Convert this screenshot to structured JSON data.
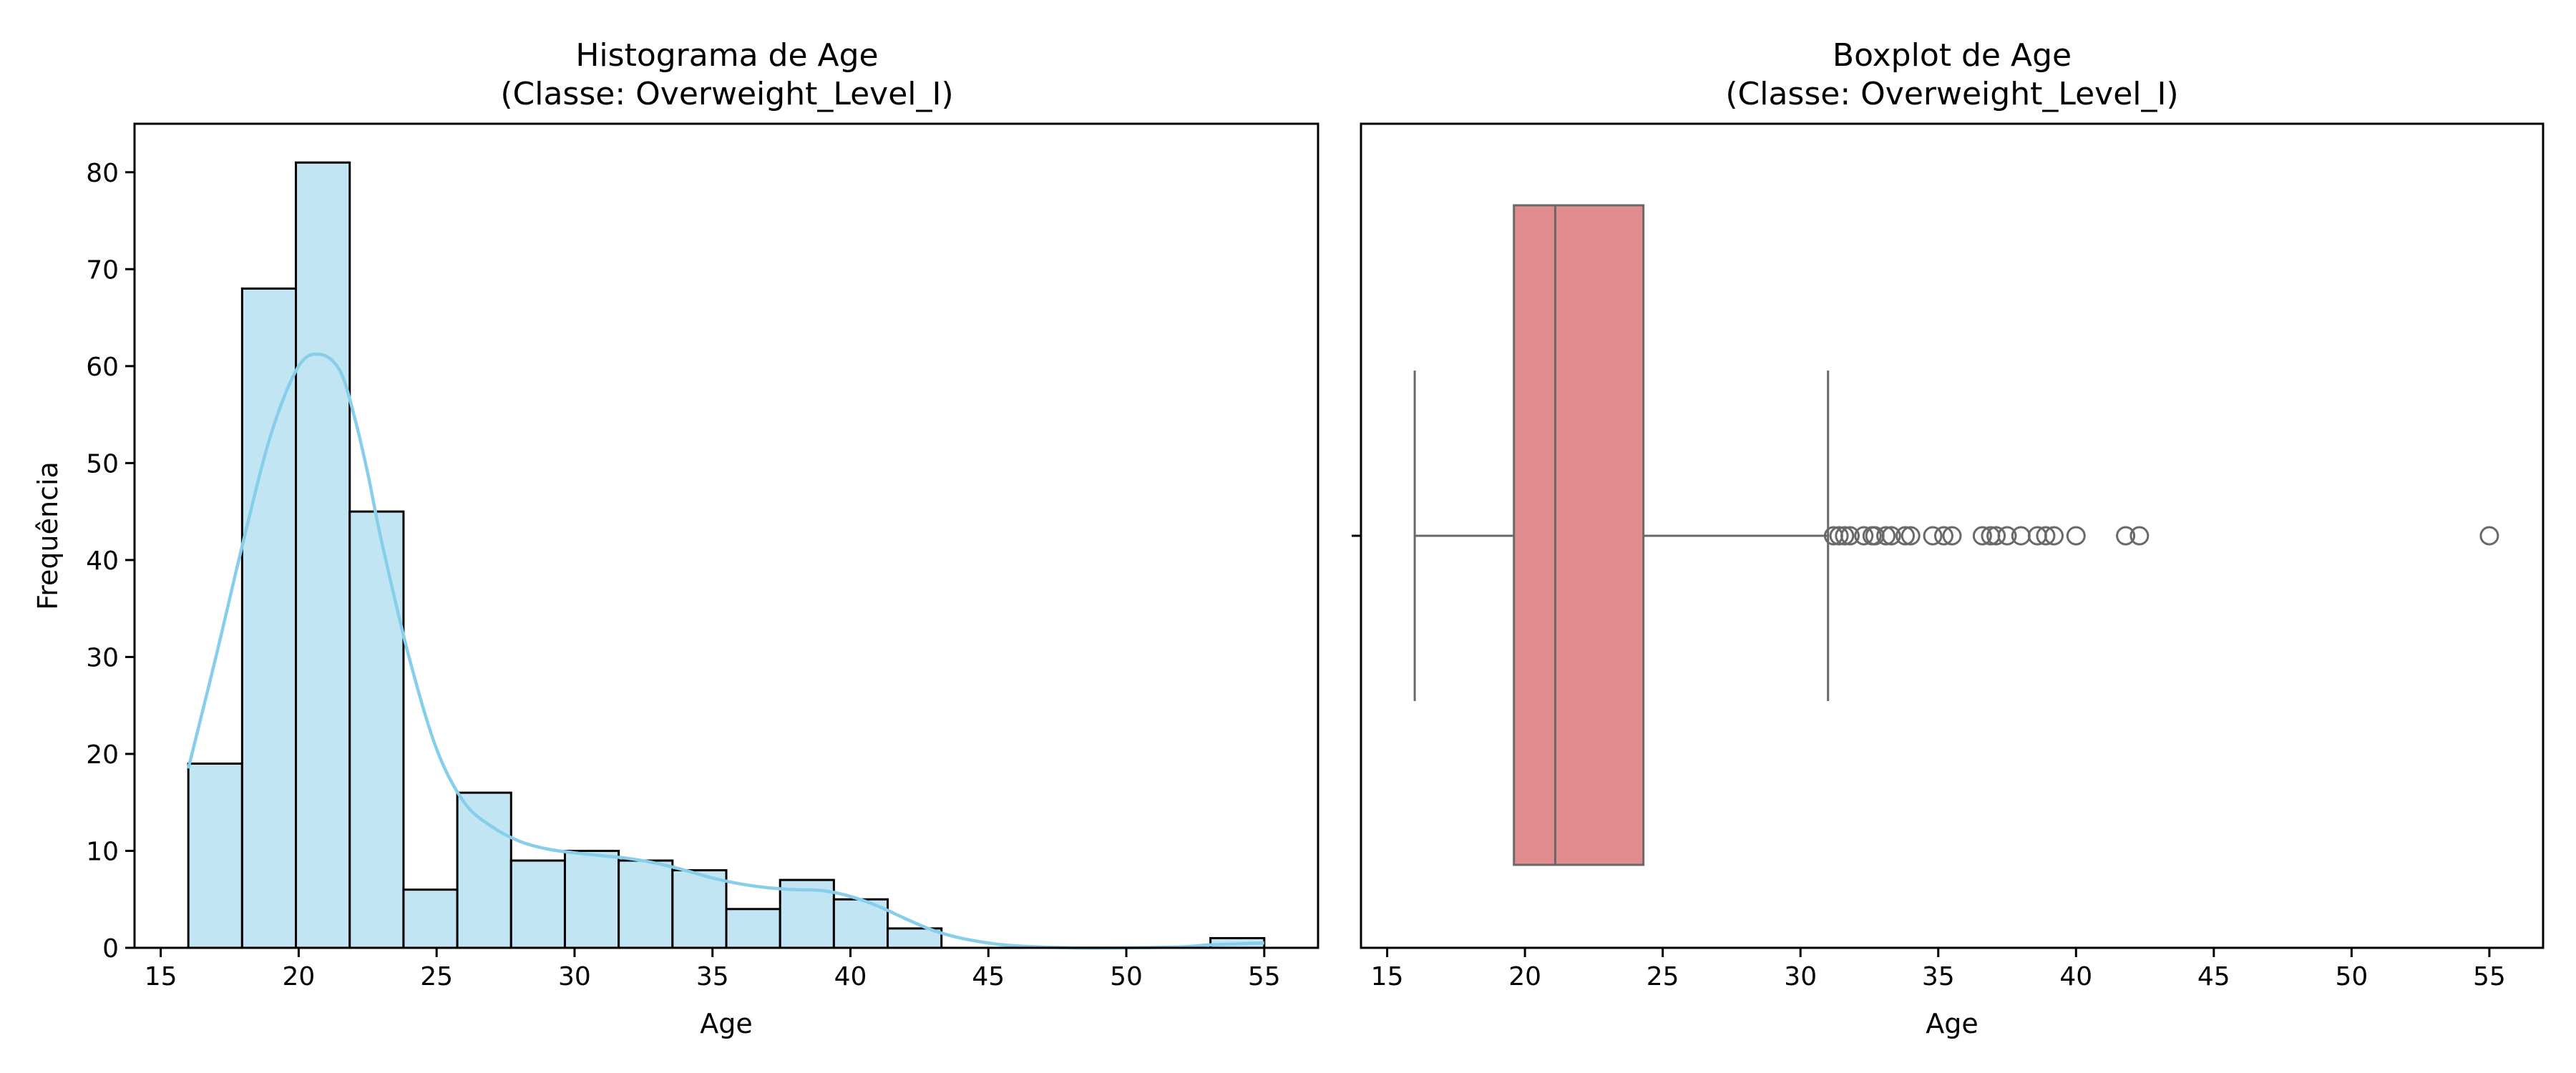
{
  "chart_data": [
    {
      "type": "histogram",
      "title": "Histograma de Age\n(Classe: Overweight_Level_I)",
      "xlabel": "Age",
      "ylabel": "Frequência",
      "xlim": [
        14.05,
        56.95
      ],
      "ylim": [
        0,
        85
      ],
      "xticks": [
        15,
        20,
        25,
        30,
        35,
        40,
        45,
        50,
        55
      ],
      "yticks": [
        0,
        10,
        20,
        30,
        40,
        50,
        60,
        70,
        80
      ],
      "bin_edges": [
        16,
        17.95,
        19.9,
        21.85,
        23.8,
        25.75,
        27.7,
        29.65,
        31.6,
        33.55,
        35.5,
        37.45,
        39.4,
        41.35,
        43.3,
        45.25,
        47.2,
        49.15,
        51.1,
        53.05,
        55
      ],
      "values": [
        19,
        68,
        81,
        45,
        6,
        16,
        9,
        10,
        9,
        8,
        4,
        7,
        5,
        2,
        0,
        0,
        0,
        0,
        0,
        1
      ],
      "kde": {
        "x": [
          16,
          17,
          18,
          19,
          20,
          20.8,
          21.5,
          22,
          22.5,
          23,
          24,
          25,
          26,
          27,
          28,
          29,
          30,
          31,
          32,
          33,
          34,
          35,
          36,
          37,
          38,
          39,
          40,
          41,
          42,
          43,
          44,
          45,
          46,
          48,
          50,
          52,
          53,
          54,
          55
        ],
        "y": [
          18.5,
          30,
          42,
          53,
          60,
          61.2,
          59.5,
          55,
          49,
          42,
          30,
          20.5,
          15,
          12.5,
          11,
          10.2,
          9.8,
          9.5,
          9.2,
          8.7,
          8,
          7.2,
          6.6,
          6.2,
          6,
          5.9,
          5.3,
          4.3,
          3,
          1.8,
          1,
          0.5,
          0.2,
          0,
          0,
          0.1,
          0.3,
          0.4,
          0.5
        ]
      },
      "bar_color": "#c2e5f4",
      "edge_color": "#000000",
      "kde_color": "#87ceeb"
    },
    {
      "type": "boxplot",
      "title": "Boxplot de Age\n(Classe: Overweight_Level_I)",
      "xlabel": "Age",
      "xlim": [
        14.05,
        56.95
      ],
      "xticks": [
        15,
        20,
        25,
        30,
        35,
        40,
        45,
        50,
        55
      ],
      "box": {
        "whisker_low": 16,
        "q1": 19.6,
        "median": 21.1,
        "q3": 24.3,
        "whisker_high": 31.0
      },
      "outliers": [
        31.2,
        31.4,
        31.6,
        31.8,
        32.3,
        32.6,
        32.7,
        33.1,
        33.3,
        33.8,
        34.0,
        34.8,
        35.2,
        35.5,
        36.6,
        36.9,
        37.1,
        37.5,
        38.0,
        38.6,
        38.9,
        39.2,
        40.0,
        41.8,
        42.3,
        55.0
      ],
      "box_color": "#e08b8e",
      "line_color": "#696969"
    }
  ]
}
